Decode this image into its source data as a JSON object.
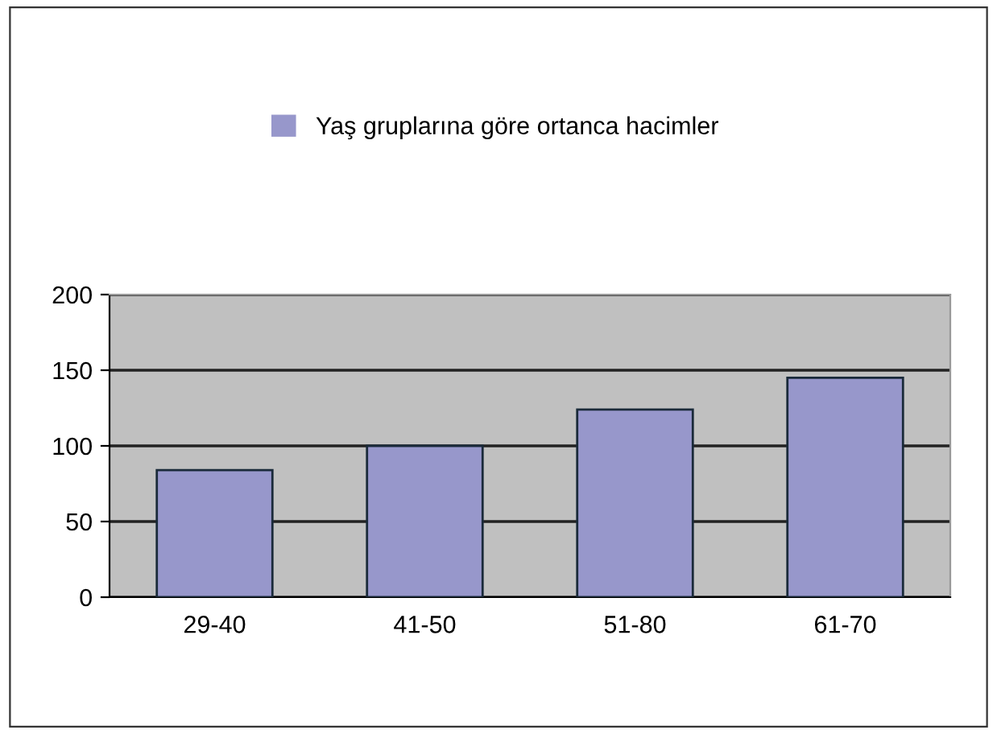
{
  "chart_data": {
    "type": "bar",
    "categories": [
      "29-40",
      "41-50",
      "51-80",
      "61-70"
    ],
    "series": [
      {
        "name": "Yaş gruplarına göre ortanca hacimler",
        "color": "#9797cb",
        "values": [
          84,
          100,
          124,
          145
        ]
      }
    ],
    "ylim": [
      0,
      200
    ],
    "yticks": [
      0,
      50,
      100,
      150,
      200
    ],
    "grid": "y",
    "legend": "top"
  }
}
